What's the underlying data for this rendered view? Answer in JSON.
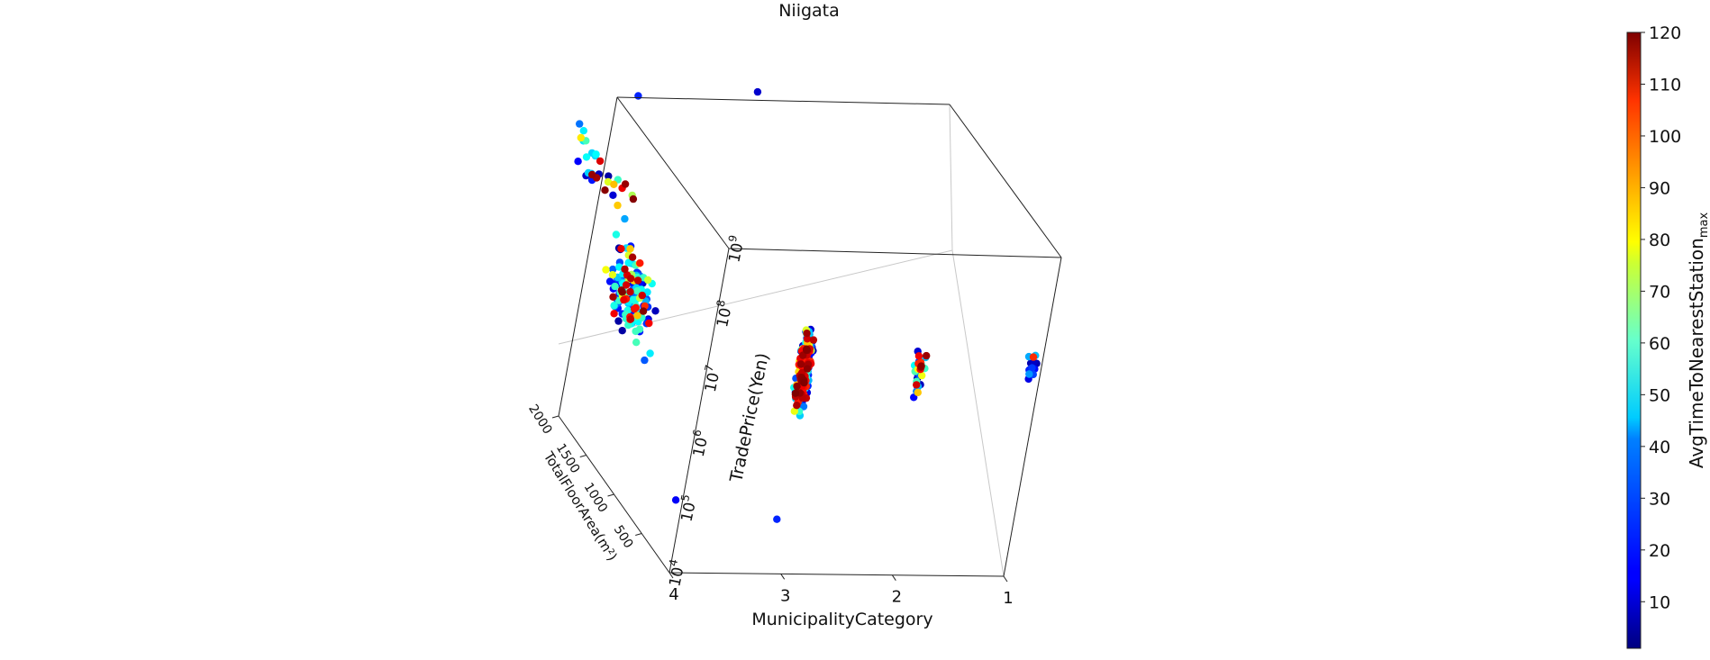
{
  "chart_data": {
    "type": "scatter",
    "title": "Niigata",
    "projection": "3d",
    "x_axis": {
      "label": "MunicipalityCategory",
      "ticks": [
        "4",
        "3",
        "2",
        "1"
      ],
      "range": [
        1,
        4
      ]
    },
    "y_axis": {
      "label": "TotalFloorArea(m²)",
      "ticks": [
        "500",
        "1000",
        "1500",
        "2000"
      ],
      "range": [
        0,
        2000
      ]
    },
    "z_axis": {
      "label": "TradePrice(Yen)",
      "scale": "log",
      "ticks": [
        "10",
        "10",
        "10",
        "10",
        "10",
        "10"
      ],
      "tick_exponents": [
        "4",
        "5",
        "6",
        "7",
        "8",
        "9"
      ],
      "range_exp": [
        4,
        9
      ]
    },
    "colorbar": {
      "label_main": "AvgTimeToNearestStation",
      "label_sub": "max",
      "ticks": [
        "10",
        "20",
        "30",
        "40",
        "50",
        "60",
        "70",
        "80",
        "90",
        "100",
        "110",
        "120"
      ],
      "range": [
        1,
        120
      ],
      "colormap": "jet"
    },
    "grid": false,
    "series": [
      {
        "municipality": 4,
        "floor_area_center": 1300,
        "log_price_center": 6.7,
        "log_price_spread": 0.9,
        "count": 140,
        "time_mix": "mixed"
      },
      {
        "municipality": 4,
        "floor_area_center": 2000,
        "log_price_center": 7.8,
        "log_price_spread": 0.5,
        "count": 30,
        "time_mix": "mixed"
      },
      {
        "municipality": 3,
        "floor_area_center": 200,
        "log_price_center": 6.9,
        "log_price_spread": 0.8,
        "count": 240,
        "time_mix": "mixed"
      },
      {
        "municipality": 2,
        "floor_area_center": 150,
        "log_price_center": 6.9,
        "log_price_spread": 0.6,
        "count": 32,
        "time_mix": "mixed"
      },
      {
        "municipality": 1,
        "floor_area_center": 150,
        "log_price_center": 7.0,
        "log_price_spread": 0.4,
        "count": 12,
        "time_mix": "low"
      }
    ],
    "points": [
      {
        "municipality": 4,
        "floor_area": 1700,
        "log_price": 9.3,
        "time": 20
      },
      {
        "municipality": 3,
        "floor_area": 1600,
        "log_price": 9.5,
        "time": 10
      },
      {
        "municipality": 3,
        "floor_area": 200,
        "log_price": 4.6,
        "time": 20
      },
      {
        "municipality": 4,
        "floor_area": 100,
        "log_price": 5.0,
        "time": 15
      },
      {
        "municipality": 2,
        "floor_area": 150,
        "log_price": 7.1,
        "time": 100
      },
      {
        "municipality": 1,
        "floor_area": 150,
        "log_price": 7.2,
        "time": 100
      }
    ]
  }
}
